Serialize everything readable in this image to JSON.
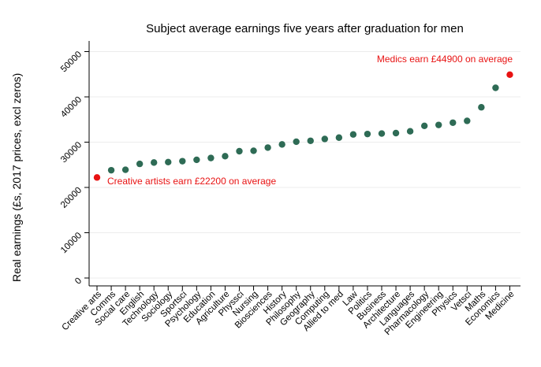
{
  "chart_data": {
    "type": "scatter",
    "title": "Subject average earnings five years after graduation for men",
    "ylabel": "Real earnings (£s, 2017 prices, excl zeros)",
    "xlabel": "",
    "categories": [
      "Creative arts",
      "Comms",
      "Social care",
      "English",
      "Technology",
      "Sociology",
      "Sportsci",
      "Psychology",
      "Education",
      "Agriculture",
      "Physsci",
      "Nursing",
      "Biosciences",
      "History",
      "Philosophy",
      "Geography",
      "Computing",
      "Allied to med",
      "Law",
      "Politics",
      "Business",
      "Architecture",
      "Languages",
      "Pharmacology",
      "Engineering",
      "Physics",
      "Vetsci",
      "Maths",
      "Economics",
      "Medicine"
    ],
    "values": [
      22200,
      23800,
      23900,
      25200,
      25500,
      25600,
      25800,
      26100,
      26500,
      26900,
      28000,
      28100,
      28800,
      29500,
      30100,
      30300,
      30700,
      31000,
      31700,
      31800,
      31900,
      32000,
      32400,
      33600,
      33800,
      34300,
      34700,
      37700,
      42000,
      44900
    ],
    "ylim": [
      0,
      50000
    ],
    "y_ticks": [
      0,
      10000,
      20000,
      30000,
      40000,
      50000
    ],
    "grid": true,
    "legend": "none",
    "dot_color": "#2e6b55",
    "highlight_color": "#e81212",
    "gridline_color": "#ececec",
    "highlight_indices": [
      0,
      29
    ],
    "annotations": [
      {
        "text": "Creative artists earn £22200 on average",
        "target": "Creative arts",
        "value": 22200
      },
      {
        "text": "Medics earn £44900 on average",
        "target": "Medicine",
        "value": 44900
      }
    ]
  }
}
